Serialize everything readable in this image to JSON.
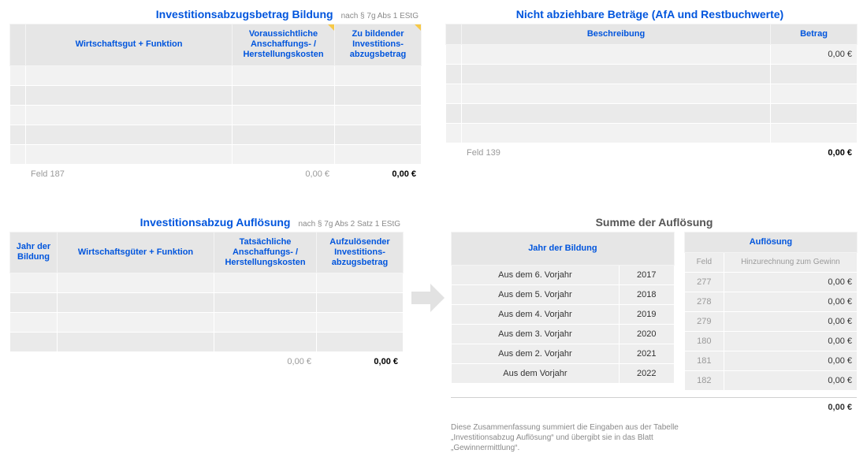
{
  "p1": {
    "title": "Investitionsabzugsbetrag Bildung",
    "subtitle": "nach § 7g Abs 1 EStG",
    "cols": {
      "c1": "Wirtschaftsgut + Funktion",
      "c2": "Voraussichtliche Anschaffungs- / Herstellungskosten",
      "c3": "Zu bildender Investitions-abzugsbetrag"
    },
    "footer_field": "Feld 187",
    "footer_v1": "0,00 €",
    "footer_v2": "0,00 €"
  },
  "p2": {
    "title": "Nicht abziehbare Beträge (AfA und Restbuchwerte)",
    "cols": {
      "c1": "Beschreibung",
      "c2": "Betrag"
    },
    "first_val": "0,00 €",
    "footer_field": "Feld 139",
    "footer_v": "0,00 €"
  },
  "p3": {
    "title": "Investitionsabzug Auflösung",
    "subtitle": "nach § 7g Abs 2 Satz 1 EStG",
    "cols": {
      "c0": "Jahr der Bildung",
      "c1": "Wirtschaftsgüter + Funktion",
      "c2": "Tatsächliche Anschaffungs- / Herstellungskosten",
      "c3": "Aufzulösender Investitions-abzugsbetrag"
    },
    "footer_v1": "0,00 €",
    "footer_v2": "0,00 €"
  },
  "sum": {
    "title": "Summe der Auflösung",
    "year_header": "Jahr der Bildung",
    "aufl_header": "Auflösung",
    "feld_label": "Feld",
    "hinzu_label": "Hinzurechnung zum Gewinn",
    "rows": [
      {
        "label": "Aus dem 6. Vorjahr",
        "year": "2017",
        "feld": "277",
        "val": "0,00 €"
      },
      {
        "label": "Aus dem 5. Vorjahr",
        "year": "2018",
        "feld": "278",
        "val": "0,00 €"
      },
      {
        "label": "Aus dem 4. Vorjahr",
        "year": "2019",
        "feld": "279",
        "val": "0,00 €"
      },
      {
        "label": "Aus dem 3. Vorjahr",
        "year": "2020",
        "feld": "180",
        "val": "0,00 €"
      },
      {
        "label": "Aus dem 2. Vorjahr",
        "year": "2021",
        "feld": "181",
        "val": "0,00 €"
      },
      {
        "label": "Aus dem Vorjahr",
        "year": "2022",
        "feld": "182",
        "val": "0,00 €"
      }
    ],
    "total": "0,00 €",
    "footnote": "Diese Zusammenfassung summiert die Eingaben aus der Tabelle „Investitionsabzug Auflösung“ und übergibt sie in das Blatt „Gewinnermittlung“."
  }
}
